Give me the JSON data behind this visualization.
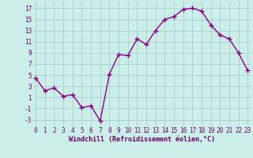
{
  "x": [
    0,
    1,
    2,
    3,
    4,
    5,
    6,
    7,
    8,
    9,
    10,
    11,
    12,
    13,
    14,
    15,
    16,
    17,
    18,
    19,
    20,
    21,
    22,
    23
  ],
  "y": [
    4.5,
    2.2,
    2.7,
    1.2,
    1.5,
    -0.8,
    -0.5,
    -3.2,
    5.2,
    8.7,
    8.5,
    11.5,
    10.5,
    13.0,
    15.0,
    15.5,
    16.8,
    17.0,
    16.5,
    14.0,
    12.2,
    11.5,
    9.0,
    5.8
  ],
  "line_color": "#880088",
  "marker": "+",
  "markersize": 4,
  "markeredgewidth": 1.0,
  "linewidth": 1.0,
  "bg_color": "#cceee8",
  "grid_color": "#aacccc",
  "xlabel": "Windchill (Refroidissement éolien,°C)",
  "xlabel_fontsize": 6,
  "tick_fontsize": 5.5,
  "yticks": [
    -3,
    -1,
    1,
    3,
    5,
    7,
    9,
    11,
    13,
    15,
    17
  ],
  "xticks": [
    0,
    1,
    2,
    3,
    4,
    5,
    6,
    7,
    8,
    9,
    10,
    11,
    12,
    13,
    14,
    15,
    16,
    17,
    18,
    19,
    20,
    21,
    22,
    23
  ],
  "ylim": [
    -4.2,
    18.2
  ],
  "xlim": [
    -0.3,
    23.3
  ]
}
